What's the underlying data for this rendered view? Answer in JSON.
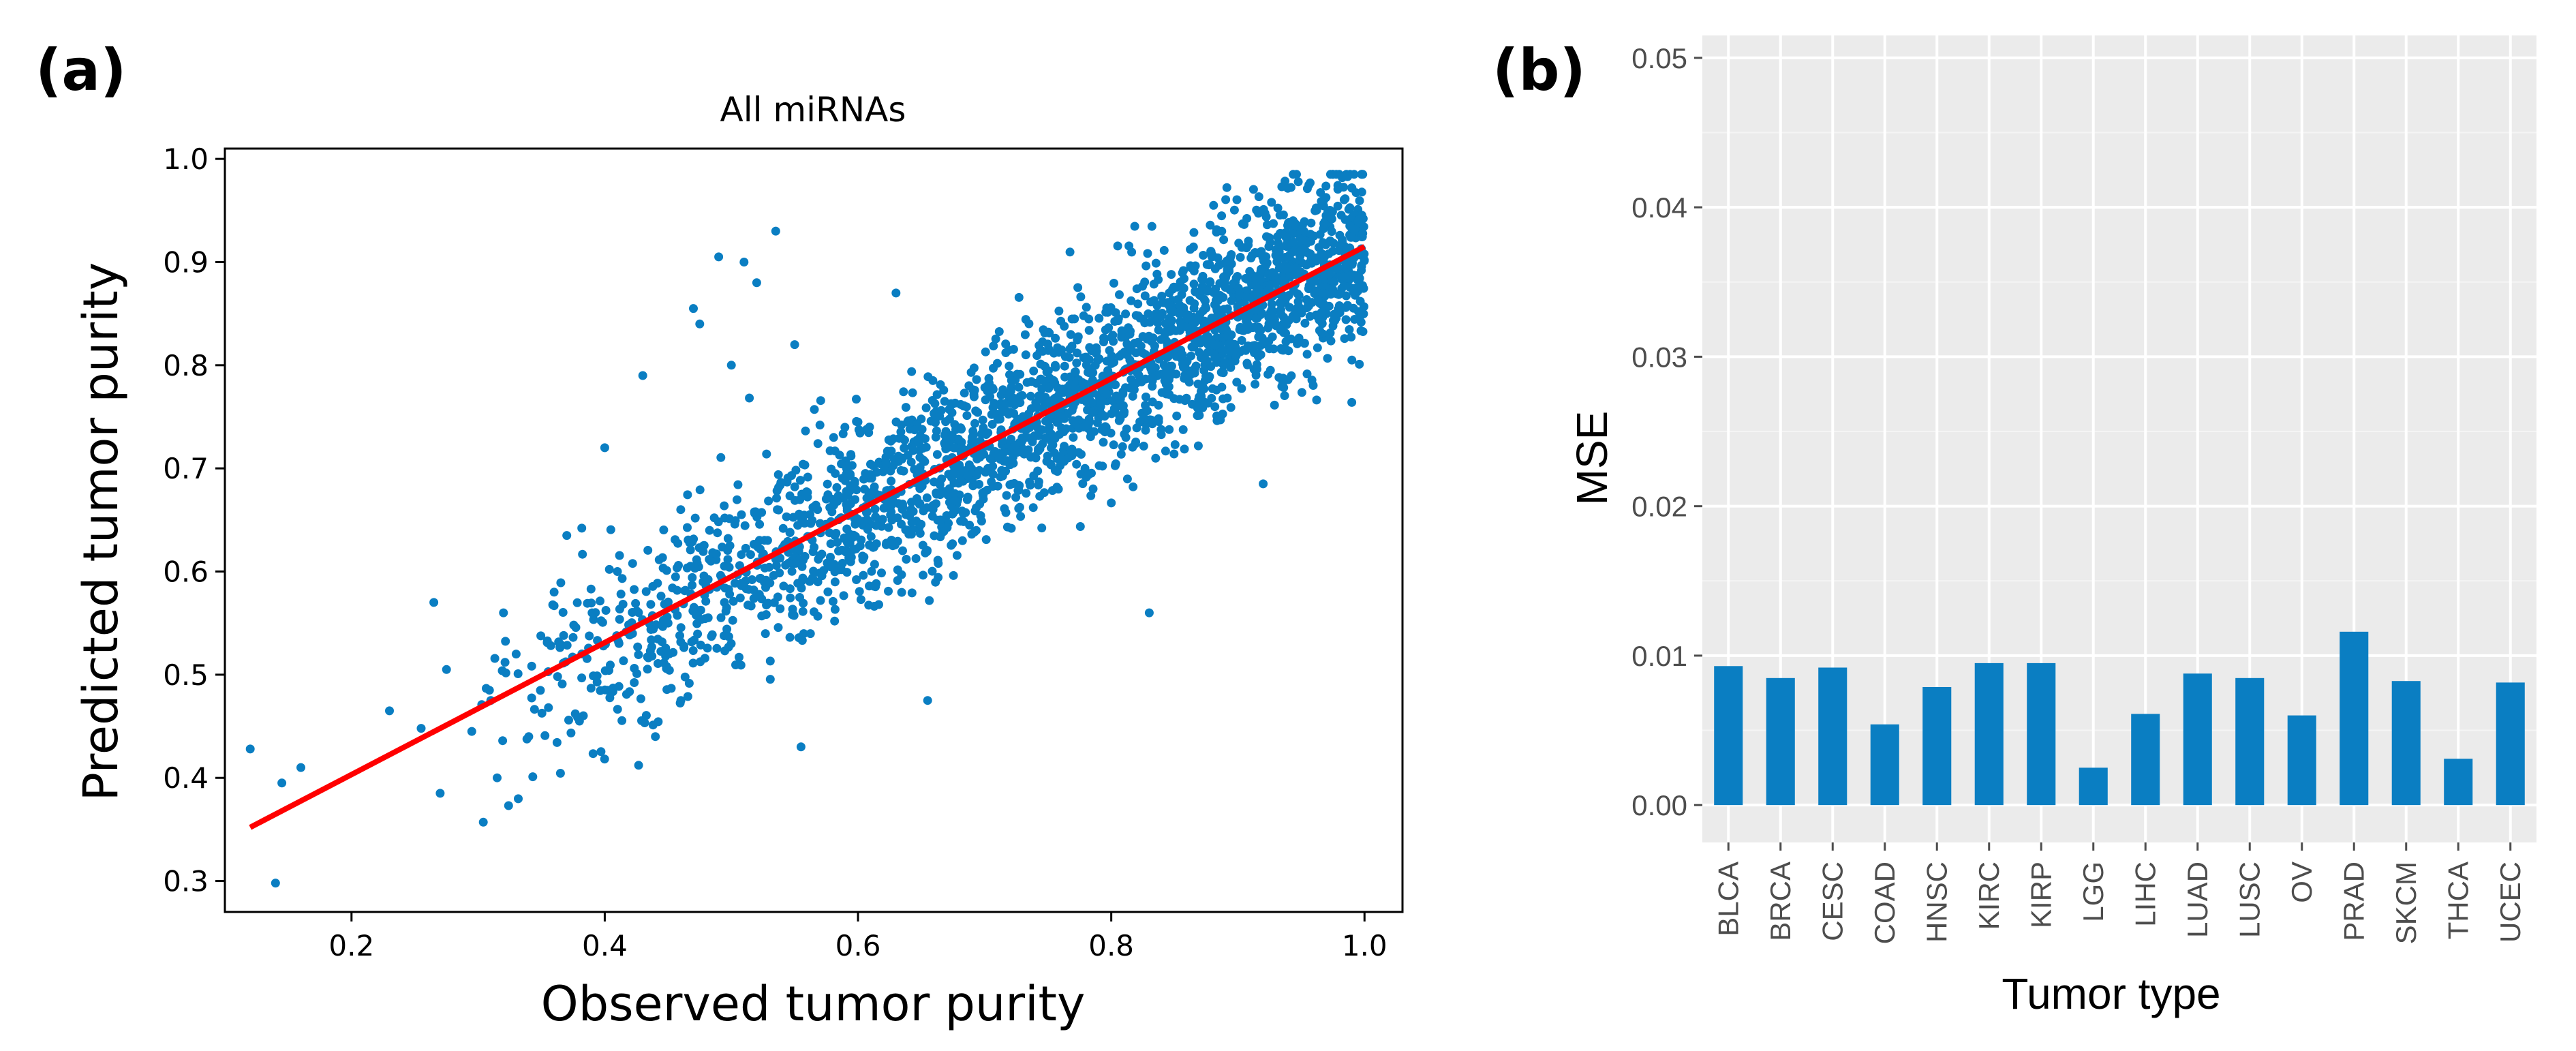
{
  "panels": {
    "a_label": "(a)",
    "b_label": "(b)"
  },
  "chart_data": [
    {
      "type": "scatter",
      "title": "All miRNAs",
      "xlabel": "Observed tumor purity",
      "ylabel": "Predicted tumor purity",
      "xlim": [
        0.1,
        1.03
      ],
      "ylim": [
        0.27,
        1.01
      ],
      "xticks": [
        "0.2",
        "0.4",
        "0.6",
        "0.8",
        "1.0"
      ],
      "yticks": [
        "0.3",
        "0.4",
        "0.5",
        "0.6",
        "0.7",
        "0.8",
        "0.9",
        "1.0"
      ],
      "point_color": "#0a7ec2",
      "fit_line_color": "#ff0000",
      "fit_line": {
        "x": [
          0.12,
          1.0
        ],
        "y": [
          0.352,
          0.915
        ]
      },
      "grid": false,
      "points": [
        {
          "x": 0.12,
          "y": 0.428
        },
        {
          "x": 0.14,
          "y": 0.298
        },
        {
          "x": 0.145,
          "y": 0.395
        },
        {
          "x": 0.16,
          "y": 0.41
        },
        {
          "x": 0.23,
          "y": 0.465
        },
        {
          "x": 0.255,
          "y": 0.448
        },
        {
          "x": 0.265,
          "y": 0.57
        },
        {
          "x": 0.27,
          "y": 0.385
        },
        {
          "x": 0.275,
          "y": 0.505
        },
        {
          "x": 0.295,
          "y": 0.445
        },
        {
          "x": 0.31,
          "y": 0.475
        },
        {
          "x": 0.315,
          "y": 0.4
        },
        {
          "x": 0.32,
          "y": 0.56
        },
        {
          "x": 0.33,
          "y": 0.52
        },
        {
          "x": 0.34,
          "y": 0.44
        },
        {
          "x": 0.36,
          "y": 0.58
        },
        {
          "x": 0.37,
          "y": 0.635
        },
        {
          "x": 0.38,
          "y": 0.455
        },
        {
          "x": 0.39,
          "y": 0.56
        },
        {
          "x": 0.4,
          "y": 0.72
        },
        {
          "x": 0.41,
          "y": 0.6
        },
        {
          "x": 0.43,
          "y": 0.79
        },
        {
          "x": 0.44,
          "y": 0.44
        },
        {
          "x": 0.45,
          "y": 0.55
        },
        {
          "x": 0.46,
          "y": 0.66
        },
        {
          "x": 0.47,
          "y": 0.855
        },
        {
          "x": 0.475,
          "y": 0.84
        },
        {
          "x": 0.49,
          "y": 0.905
        },
        {
          "x": 0.5,
          "y": 0.8
        },
        {
          "x": 0.51,
          "y": 0.9
        },
        {
          "x": 0.52,
          "y": 0.88
        },
        {
          "x": 0.535,
          "y": 0.93
        },
        {
          "x": 0.55,
          "y": 0.82
        },
        {
          "x": 0.555,
          "y": 0.43
        },
        {
          "x": 0.6,
          "y": 0.745
        },
        {
          "x": 0.63,
          "y": 0.87
        },
        {
          "x": 0.655,
          "y": 0.475
        },
        {
          "x": 0.83,
          "y": 0.56
        },
        {
          "x": 0.92,
          "y": 0.685
        },
        {
          "x": 0.99,
          "y": 0.805
        }
      ],
      "cloud": {
        "count": 2600,
        "x_range": [
          0.3,
          1.0
        ],
        "residual_sd": 0.045,
        "seed": 7
      }
    },
    {
      "type": "bar",
      "xlabel": "Tumor type",
      "ylabel": "MSE",
      "ylim": [
        -0.0025,
        0.0515
      ],
      "yticks": [
        "0.00",
        "0.01",
        "0.02",
        "0.03",
        "0.04",
        "0.05"
      ],
      "bar_color": "#0a7ec2",
      "panel_background": "#ebebeb",
      "grid": true,
      "categories": [
        "BLCA",
        "BRCA",
        "CESC",
        "COAD",
        "HNSC",
        "KIRC",
        "KIRP",
        "LGG",
        "LIHC",
        "LUAD",
        "LUSC",
        "OV",
        "PRAD",
        "SKCM",
        "THCA",
        "UCEC"
      ],
      "values": [
        0.0093,
        0.0085,
        0.0092,
        0.0054,
        0.0079,
        0.0095,
        0.0095,
        0.0025,
        0.0061,
        0.0088,
        0.0085,
        0.006,
        0.0116,
        0.0083,
        0.0031,
        0.0082
      ]
    }
  ]
}
